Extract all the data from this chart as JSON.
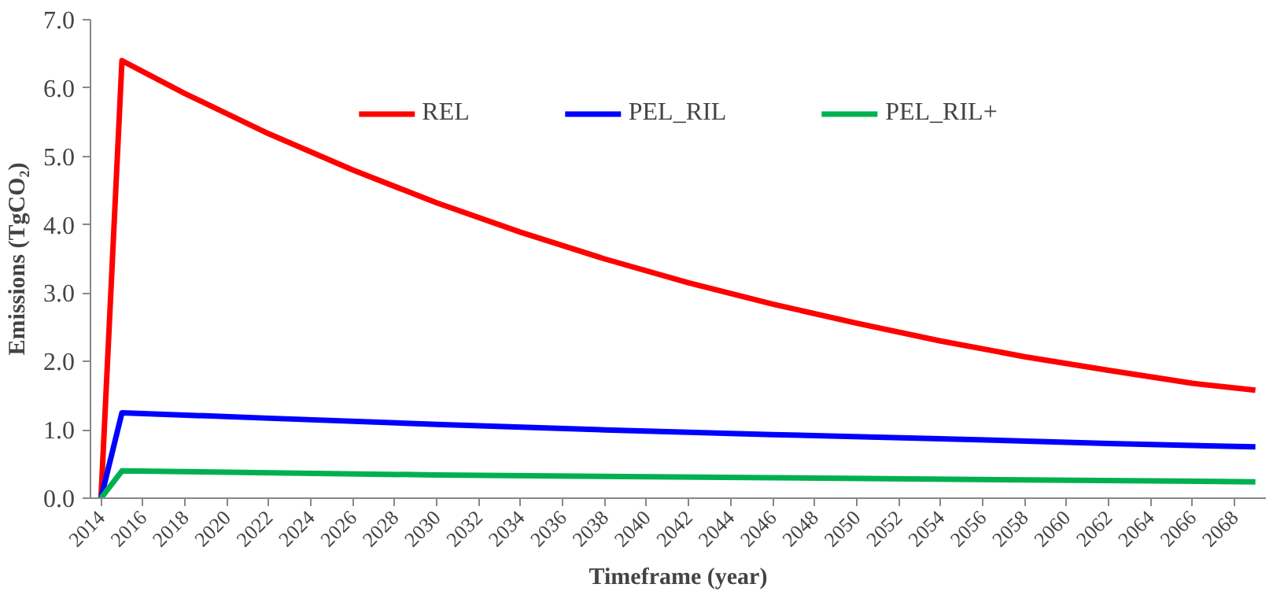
{
  "chart_data": {
    "type": "line",
    "xlabel": "Timeframe (year)",
    "ylabel": "Emissions (TgCO₂)",
    "xlim": [
      2013.5,
      2069.5
    ],
    "xticks": [
      2014,
      2016,
      2018,
      2020,
      2022,
      2024,
      2026,
      2028,
      2030,
      2032,
      2034,
      2036,
      2038,
      2040,
      2042,
      2044,
      2046,
      2048,
      2050,
      2052,
      2054,
      2056,
      2058,
      2060,
      2062,
      2064,
      2066,
      2068
    ],
    "ylim": [
      0,
      7
    ],
    "yticks": [
      {
        "value": 0,
        "label": "0.0"
      },
      {
        "value": 1,
        "label": "1.0"
      },
      {
        "value": 2,
        "label": "2.0"
      },
      {
        "value": 3,
        "label": "3.0"
      },
      {
        "value": 4,
        "label": "4.0"
      },
      {
        "value": 5,
        "label": "5.0"
      },
      {
        "value": 6,
        "label": "6.0"
      },
      {
        "value": 7,
        "label": "7.0"
      }
    ],
    "grid": false,
    "legend": "top",
    "marker": "none",
    "line_style": "solid",
    "series": [
      {
        "name": "REL",
        "color": "#ff0000",
        "x": [
          2014,
          2015,
          2018,
          2022,
          2026,
          2030,
          2034,
          2038,
          2042,
          2046,
          2050,
          2054,
          2058,
          2062,
          2066,
          2069
        ],
        "values": [
          0,
          6.4,
          5.92,
          5.33,
          4.8,
          4.32,
          3.89,
          3.5,
          3.15,
          2.84,
          2.56,
          2.3,
          2.07,
          1.87,
          1.68,
          1.58
        ]
      },
      {
        "name": "PEL_RIL",
        "color": "#0000ff",
        "x": [
          2014,
          2015,
          2022,
          2030,
          2038,
          2046,
          2054,
          2062,
          2069
        ],
        "values": [
          0,
          1.25,
          1.17,
          1.08,
          1.0,
          0.93,
          0.87,
          0.8,
          0.75
        ]
      },
      {
        "name": "PEL_RIL+",
        "color": "#00b050",
        "x": [
          2014,
          2015,
          2030,
          2046,
          2069
        ],
        "values": [
          0,
          0.4,
          0.34,
          0.3,
          0.24
        ]
      }
    ]
  }
}
